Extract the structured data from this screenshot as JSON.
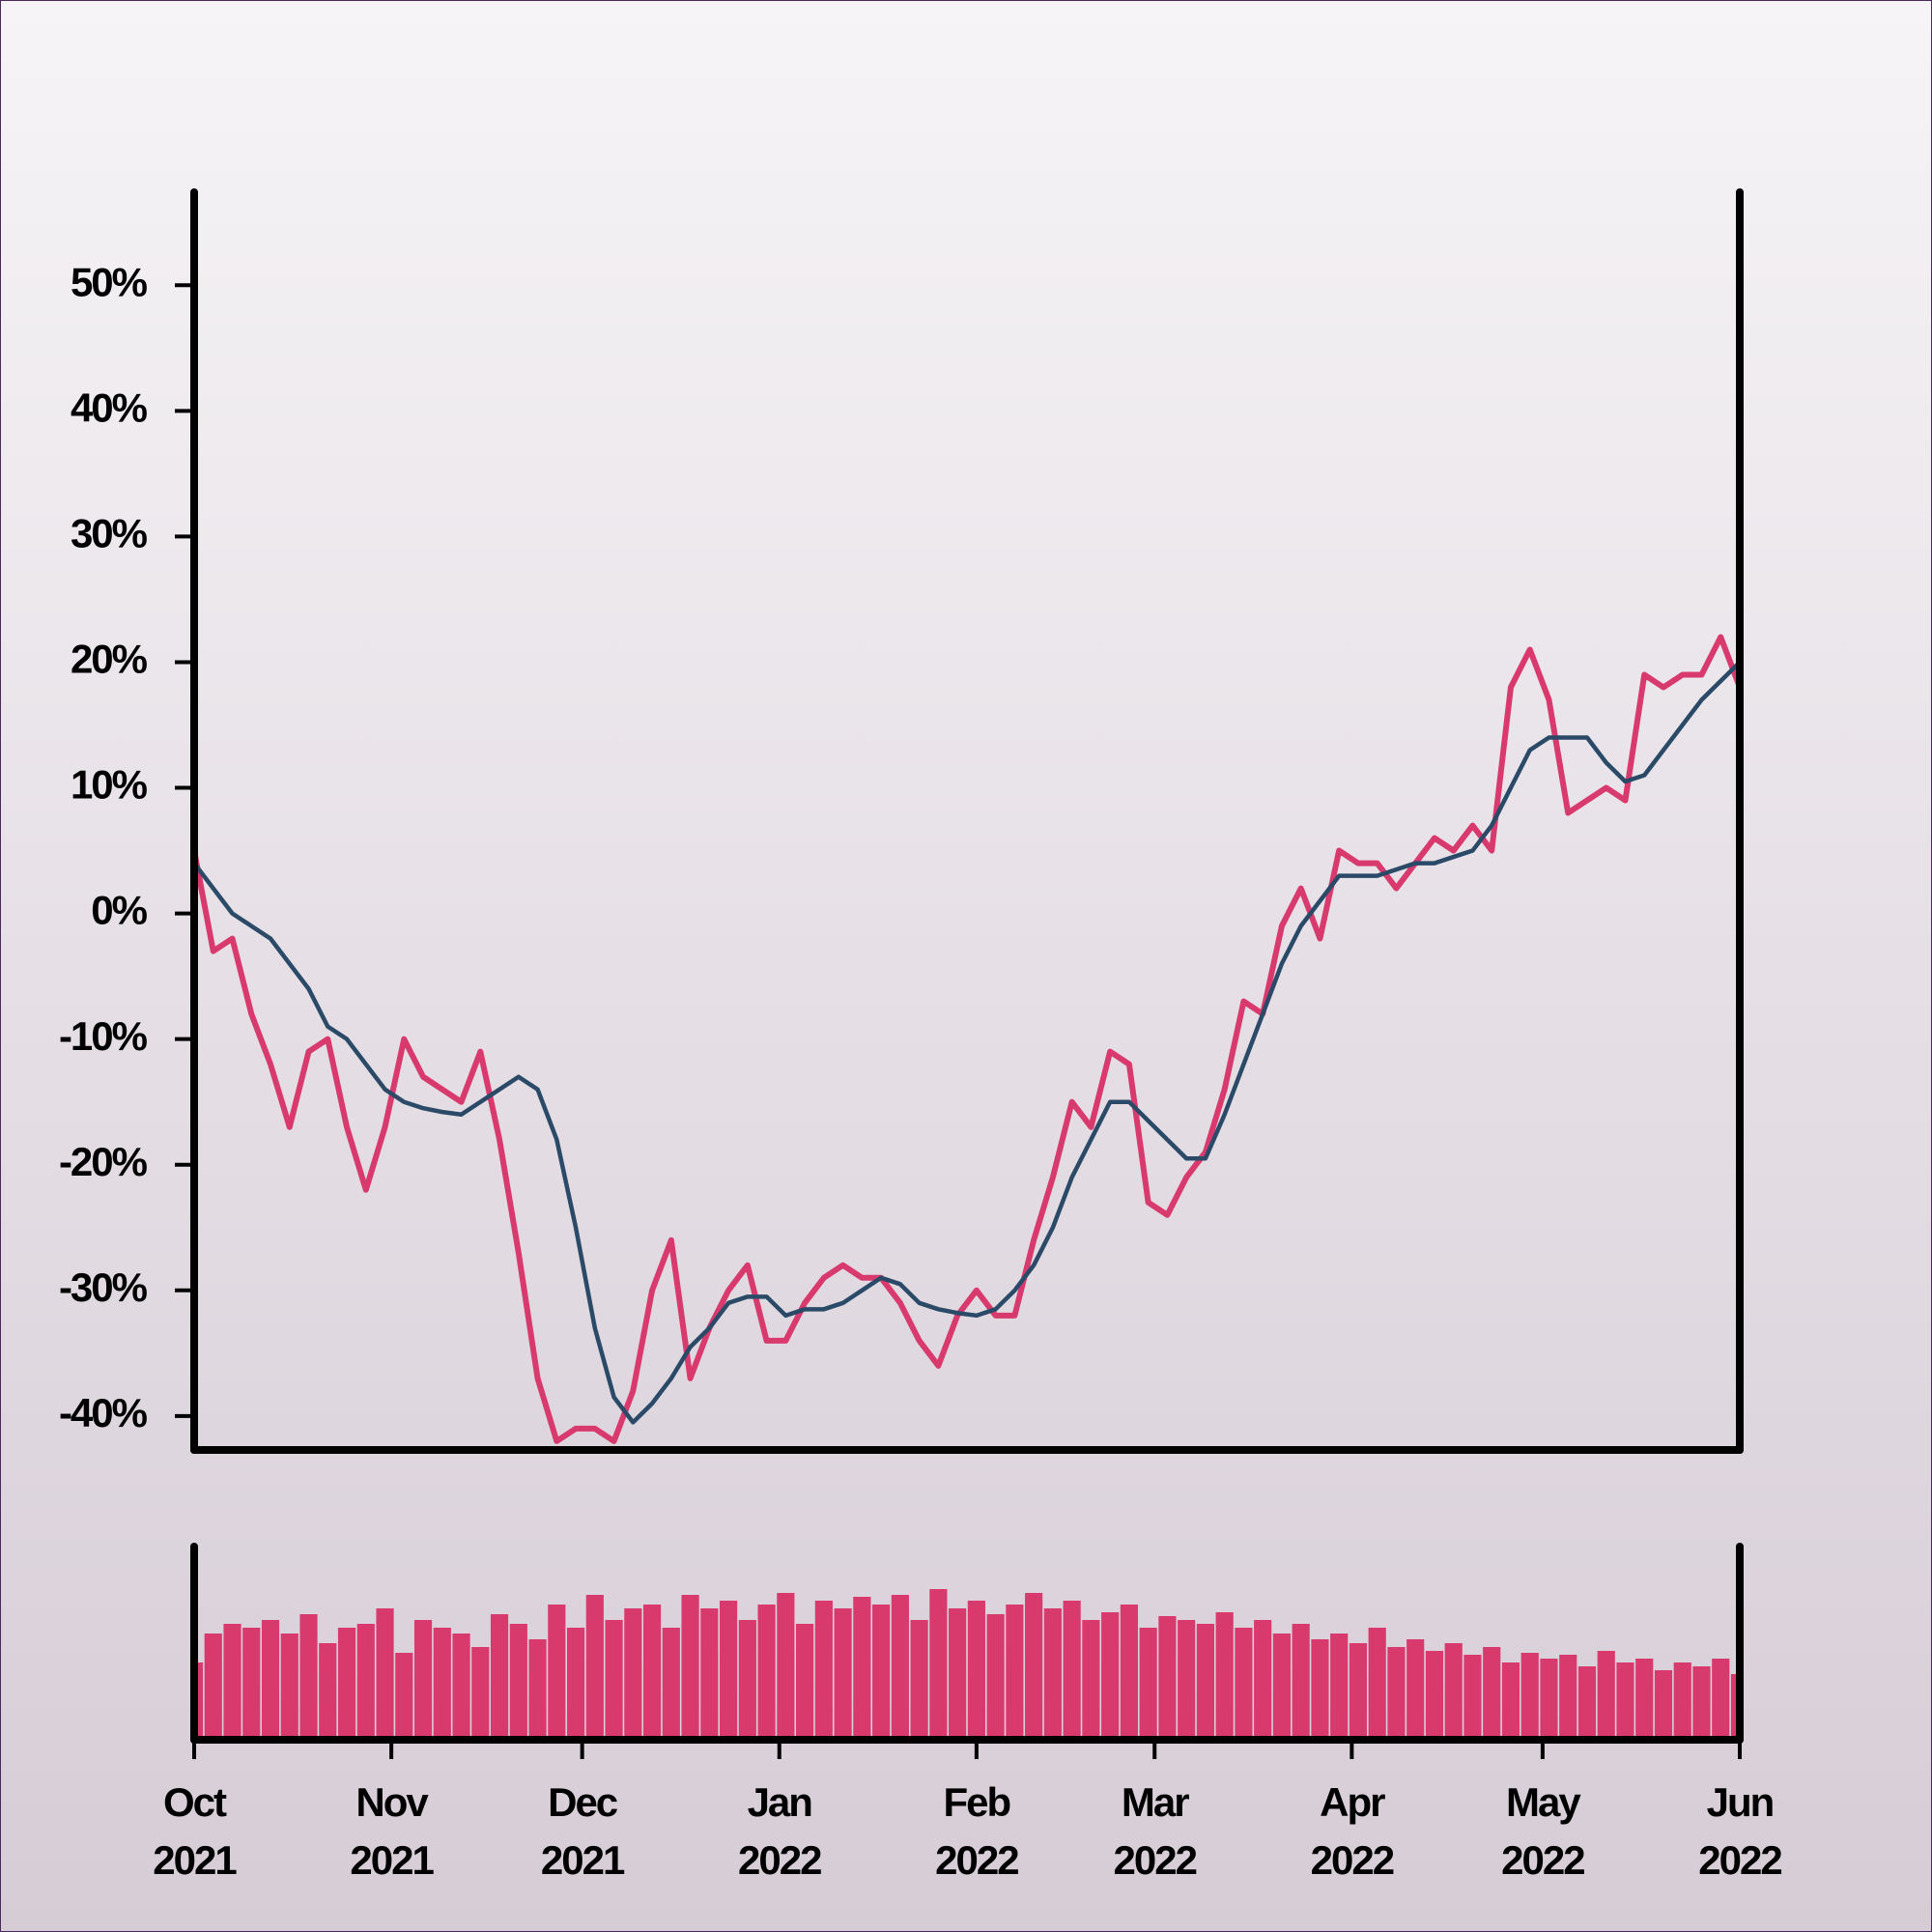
{
  "chart_data": {
    "type": "line",
    "xlim": [
      0,
      243
    ],
    "xticks": [
      {
        "value": 0,
        "label": "Oct 2021"
      },
      {
        "value": 31,
        "label": "Nov 2021"
      },
      {
        "value": 61,
        "label": "Dec 2021"
      },
      {
        "value": 92,
        "label": "Jan 2022"
      },
      {
        "value": 123,
        "label": "Feb 2022"
      },
      {
        "value": 151,
        "label": "Mar 2022"
      },
      {
        "value": 182,
        "label": "Apr 2022"
      },
      {
        "value": 212,
        "label": "May 2022"
      },
      {
        "value": 243,
        "label": "Jun 2022"
      }
    ],
    "ylim": [
      -42.7,
      57.4
    ],
    "yticks": [
      {
        "value": -40,
        "label": "-40%"
      },
      {
        "value": -30,
        "label": "-30%"
      },
      {
        "value": -20,
        "label": "-20%"
      },
      {
        "value": -10,
        "label": "-10%"
      },
      {
        "value": 0,
        "label": "0%"
      },
      {
        "value": 10,
        "label": "10%"
      },
      {
        "value": 20,
        "label": "20%"
      },
      {
        "value": 30,
        "label": "30%"
      },
      {
        "value": 40,
        "label": "40%"
      },
      {
        "value": 50,
        "label": "50%"
      }
    ],
    "x": [
      0,
      3,
      6,
      9,
      12,
      15,
      18,
      21,
      24,
      27,
      30,
      33,
      36,
      39,
      42,
      45,
      48,
      51,
      54,
      57,
      60,
      63,
      66,
      69,
      72,
      75,
      78,
      81,
      84,
      87,
      90,
      93,
      96,
      99,
      102,
      105,
      108,
      111,
      114,
      117,
      120,
      123,
      126,
      129,
      132,
      135,
      138,
      141,
      144,
      147,
      150,
      153,
      156,
      159,
      162,
      165,
      168,
      171,
      174,
      177,
      180,
      183,
      186,
      189,
      192,
      195,
      198,
      201,
      204,
      207,
      210,
      213,
      216,
      219,
      222,
      225,
      228,
      231,
      234,
      237,
      240,
      243
    ],
    "series": [
      {
        "color": "#d93a6e",
        "values": [
          5,
          -3,
          -2,
          -8,
          -12,
          -17,
          -11,
          -10,
          -17,
          -22,
          -17,
          -10,
          -13,
          -14,
          -15,
          -11,
          -18,
          -27,
          -37,
          -42,
          -41,
          -41,
          -42,
          -38,
          -30,
          -26,
          -37,
          -33,
          -30,
          -28,
          -34,
          -34,
          -31,
          -29,
          -28,
          -29,
          -29,
          -31,
          -34,
          -36,
          -32,
          -30,
          -32,
          -32,
          -26,
          -21,
          -15,
          -17,
          -11,
          -12,
          -23,
          -24,
          -21,
          -19,
          -14,
          -7,
          -8,
          -1,
          2,
          -2,
          5,
          4,
          4,
          2,
          4,
          6,
          5,
          7,
          5,
          18,
          21,
          17,
          8,
          9,
          10,
          9,
          19,
          18,
          19,
          19,
          22,
          18
        ]
      },
      {
        "color": "#2a4a68",
        "values": [
          4,
          2,
          0,
          -1,
          -2,
          -4,
          -6,
          -9,
          -10,
          -12,
          -14,
          -15,
          -15.5,
          -15.8,
          -16,
          -15,
          -14,
          -13,
          -14,
          -18,
          -25,
          -33,
          -38.5,
          -40.5,
          -39,
          -37,
          -34.5,
          -33,
          -31,
          -30.5,
          -30.5,
          -32,
          -31.5,
          -31.5,
          -31,
          -30,
          -29,
          -29.5,
          -31,
          -31.5,
          -31.8,
          -32,
          -31.5,
          -30,
          -28,
          -25,
          -21,
          -18,
          -15,
          -15,
          -16.5,
          -18,
          -19.5,
          -19.5,
          -16,
          -12,
          -8,
          -4,
          -1,
          1,
          3,
          3,
          3,
          3.5,
          4,
          4,
          4.5,
          5,
          7,
          10,
          13,
          14,
          14,
          14,
          12,
          10.5,
          11,
          13,
          15,
          17,
          18.5,
          20
        ]
      }
    ],
    "volume": {
      "type": "bar",
      "color": "#d93a6e",
      "ylim": [
        0,
        100
      ],
      "values": [
        40,
        55,
        60,
        58,
        62,
        55,
        65,
        50,
        58,
        60,
        68,
        45,
        62,
        58,
        55,
        48,
        65,
        60,
        52,
        70,
        58,
        75,
        62,
        68,
        70,
        58,
        75,
        68,
        72,
        62,
        70,
        76,
        60,
        72,
        68,
        74,
        70,
        75,
        62,
        78,
        68,
        72,
        65,
        70,
        76,
        68,
        72,
        62,
        66,
        70,
        58,
        64,
        62,
        60,
        66,
        58,
        62,
        55,
        60,
        52,
        55,
        50,
        58,
        48,
        52,
        46,
        50,
        44,
        48,
        40,
        45,
        42,
        44,
        38,
        46,
        40,
        42,
        36,
        40,
        38,
        42,
        34
      ]
    }
  }
}
